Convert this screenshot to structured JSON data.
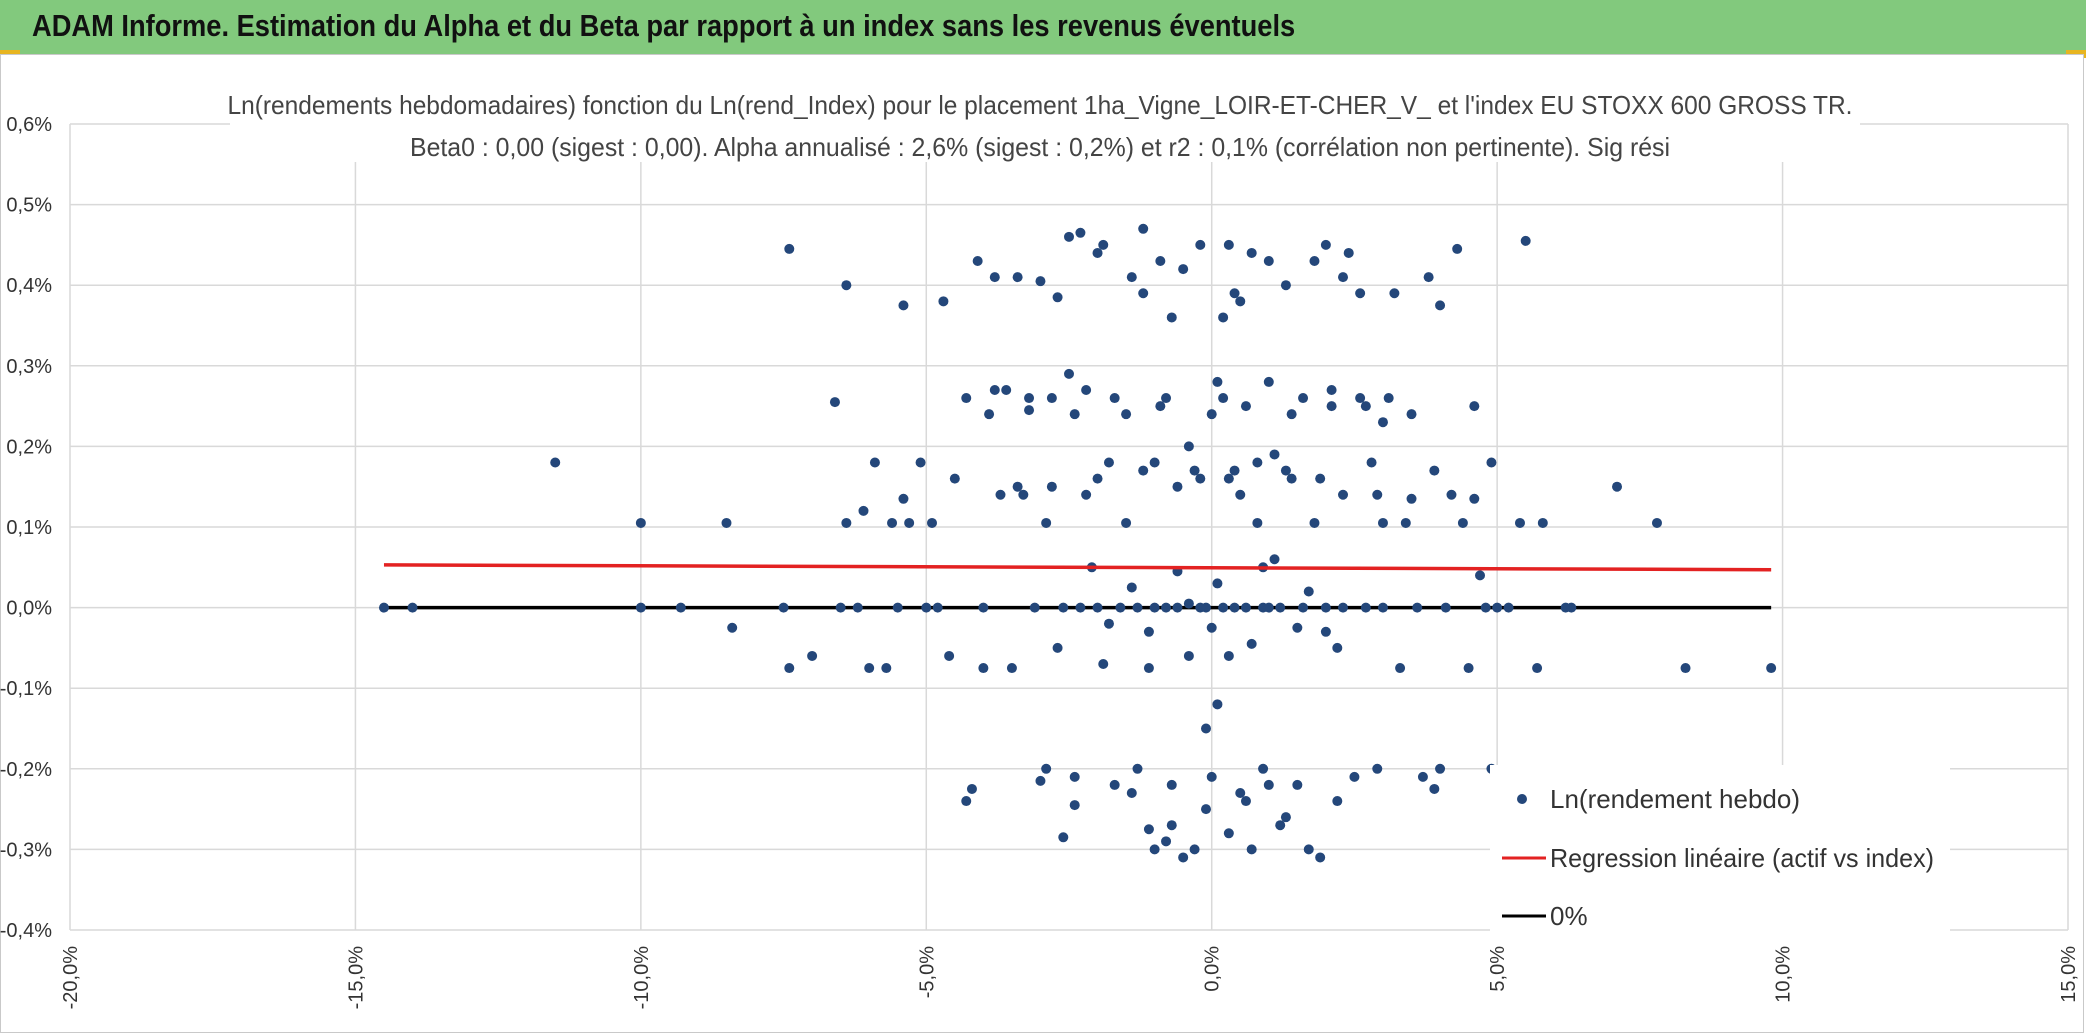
{
  "header": {
    "title": "ADAM Informe. Estimation du Alpha et du Beta par rapport à un index sans les revenus éventuels",
    "background": "#82c97d",
    "corner_color": "#e7b521"
  },
  "chart_data": {
    "type": "scatter",
    "title_line1": "Ln(rendements hebdomadaires) fonction du Ln(rend_Index) pour le placement 1ha_Vigne_LOIR-ET-CHER_V_ et l'index EU STOXX 600 GROSS TR.",
    "title_line2": "Beta0 : 0,00 (sigest : 0,00). Alpha annualisé : 2,6% (sigest : 0,2%) et r2 : 0,1% (corrélation non pertinente). Sig rési",
    "xlim": [
      -20,
      15
    ],
    "ylim": [
      -0.4,
      0.6
    ],
    "x_ticks": [
      -20,
      -15,
      -10,
      -5,
      0,
      5,
      10,
      15
    ],
    "x_tick_labels": [
      "-20,0%",
      "-15,0%",
      "-10,0%",
      "-5,0%",
      "0,0%",
      "5,0%",
      "10,0%",
      "15,0%"
    ],
    "y_ticks": [
      -0.4,
      -0.3,
      -0.2,
      -0.1,
      0.0,
      0.1,
      0.2,
      0.3,
      0.4,
      0.5,
      0.6
    ],
    "y_tick_labels": [
      "-0,4%",
      "-0,3%",
      "-0,2%",
      "-0,1%",
      "0,0%",
      "0,1%",
      "0,2%",
      "0,3%",
      "0,4%",
      "0,5%",
      "0,6%"
    ],
    "grid": true,
    "legend": [
      {
        "label": "Ln(rendement hebdo)",
        "marker": "dot",
        "color": "#24477a"
      },
      {
        "label": "Regression linéaire (actif vs index)",
        "marker": "line",
        "color": "#e32222"
      },
      {
        "label": "0%",
        "marker": "line",
        "color": "#000000"
      }
    ],
    "legend_placement": "bottom-right",
    "series": [
      {
        "name": "Ln(rendement hebdo)",
        "color": "#24477a",
        "points": [
          [
            -14.5,
            0.0
          ],
          [
            -14.0,
            0.0
          ],
          [
            -11.5,
            0.18
          ],
          [
            -10.0,
            0.105
          ],
          [
            -10.0,
            0.0
          ],
          [
            -9.3,
            0.0
          ],
          [
            -8.5,
            0.105
          ],
          [
            -8.4,
            -0.025
          ],
          [
            -7.5,
            0.0
          ],
          [
            -7.4,
            -0.075
          ],
          [
            -7.4,
            0.445
          ],
          [
            -7.0,
            -0.06
          ],
          [
            -6.6,
            0.255
          ],
          [
            -6.5,
            0.0
          ],
          [
            -6.4,
            0.105
          ],
          [
            -6.4,
            0.4
          ],
          [
            -6.2,
            0.0
          ],
          [
            -6.1,
            0.12
          ],
          [
            -6.0,
            -0.075
          ],
          [
            -5.9,
            0.18
          ],
          [
            -5.7,
            -0.075
          ],
          [
            -5.6,
            0.105
          ],
          [
            -5.5,
            0.0
          ],
          [
            -5.4,
            0.375
          ],
          [
            -5.4,
            0.135
          ],
          [
            -5.3,
            0.105
          ],
          [
            -5.1,
            0.18
          ],
          [
            -5.0,
            0.0
          ],
          [
            -4.9,
            0.105
          ],
          [
            -4.8,
            0.0
          ],
          [
            -4.7,
            0.38
          ],
          [
            -4.6,
            -0.06
          ],
          [
            -4.5,
            0.16
          ],
          [
            -4.3,
            0.26
          ],
          [
            -4.3,
            -0.24
          ],
          [
            -4.2,
            -0.225
          ],
          [
            -4.1,
            0.43
          ],
          [
            -4.0,
            0.0
          ],
          [
            -4.0,
            -0.075
          ],
          [
            -3.9,
            0.24
          ],
          [
            -3.8,
            0.41
          ],
          [
            -3.7,
            0.14
          ],
          [
            -3.6,
            0.27
          ],
          [
            -3.5,
            -0.075
          ],
          [
            -3.4,
            0.41
          ],
          [
            -3.3,
            0.14
          ],
          [
            -3.2,
            0.26
          ],
          [
            -3.1,
            0.0
          ],
          [
            -3.0,
            -0.215
          ],
          [
            -3.0,
            0.405
          ],
          [
            -2.9,
            0.105
          ],
          [
            -2.9,
            -0.2
          ],
          [
            -2.8,
            0.26
          ],
          [
            -2.7,
            -0.05
          ],
          [
            -2.7,
            0.385
          ],
          [
            -2.6,
            0.0
          ],
          [
            -2.6,
            -0.285
          ],
          [
            -2.5,
            0.29
          ],
          [
            -2.5,
            0.46
          ],
          [
            -2.4,
            -0.21
          ],
          [
            -2.4,
            -0.245
          ],
          [
            -2.3,
            0.0
          ],
          [
            -2.3,
            0.465
          ],
          [
            -2.2,
            0.27
          ],
          [
            -2.2,
            0.14
          ],
          [
            -2.1,
            0.05
          ],
          [
            -2.0,
            0.0
          ],
          [
            -2.0,
            0.44
          ],
          [
            -1.9,
            -0.07
          ],
          [
            -1.9,
            0.45
          ],
          [
            -1.8,
            0.18
          ],
          [
            -1.7,
            -0.22
          ],
          [
            -1.7,
            0.26
          ],
          [
            -1.6,
            0.0
          ],
          [
            -1.5,
            0.105
          ],
          [
            -1.4,
            -0.23
          ],
          [
            -1.4,
            0.41
          ],
          [
            -1.3,
            0.0
          ],
          [
            -1.3,
            -0.2
          ],
          [
            -1.2,
            0.39
          ],
          [
            -1.2,
            0.47
          ],
          [
            -1.1,
            -0.075
          ],
          [
            -1.1,
            -0.275
          ],
          [
            -1.0,
            0.18
          ],
          [
            -1.0,
            0.0
          ],
          [
            -0.9,
            0.43
          ],
          [
            -0.8,
            0.26
          ],
          [
            -0.8,
            -0.29
          ],
          [
            -0.7,
            0.36
          ],
          [
            -0.7,
            -0.22
          ],
          [
            -0.6,
            0.0
          ],
          [
            -0.6,
            0.045
          ],
          [
            -0.5,
            -0.31
          ],
          [
            -0.5,
            0.42
          ],
          [
            -0.4,
            0.2
          ],
          [
            -0.4,
            0.005
          ],
          [
            -0.3,
            -0.3
          ],
          [
            -0.2,
            0.45
          ],
          [
            -0.2,
            0.16
          ],
          [
            -0.1,
            0.0
          ],
          [
            -0.1,
            -0.15
          ],
          [
            0.0,
            0.24
          ],
          [
            0.0,
            -0.025
          ],
          [
            0.1,
            0.28
          ],
          [
            0.1,
            -0.12
          ],
          [
            0.2,
            0.36
          ],
          [
            0.2,
            0.0
          ],
          [
            0.3,
            0.45
          ],
          [
            0.3,
            -0.06
          ],
          [
            0.4,
            0.39
          ],
          [
            0.4,
            0.17
          ],
          [
            0.5,
            -0.23
          ],
          [
            0.5,
            0.38
          ],
          [
            0.6,
            0.0
          ],
          [
            0.6,
            0.25
          ],
          [
            0.7,
            -0.3
          ],
          [
            0.7,
            0.44
          ],
          [
            0.8,
            0.105
          ],
          [
            0.9,
            0.0
          ],
          [
            0.9,
            -0.2
          ],
          [
            1.0,
            0.43
          ],
          [
            1.0,
            0.28
          ],
          [
            1.1,
            0.06
          ],
          [
            1.2,
            -0.27
          ],
          [
            1.2,
            0.0
          ],
          [
            1.3,
            0.4
          ],
          [
            1.4,
            0.16
          ],
          [
            1.5,
            -0.22
          ],
          [
            1.6,
            0.26
          ],
          [
            1.6,
            0.0
          ],
          [
            1.7,
            -0.3
          ],
          [
            1.8,
            0.43
          ],
          [
            1.8,
            0.105
          ],
          [
            1.9,
            -0.31
          ],
          [
            2.0,
            0.45
          ],
          [
            2.0,
            0.0
          ],
          [
            2.1,
            0.25
          ],
          [
            2.2,
            -0.05
          ],
          [
            2.3,
            0.41
          ],
          [
            2.3,
            0.0
          ],
          [
            2.4,
            0.44
          ],
          [
            2.5,
            -0.21
          ],
          [
            2.6,
            0.26
          ],
          [
            2.6,
            0.39
          ],
          [
            2.7,
            0.0
          ],
          [
            2.8,
            0.18
          ],
          [
            2.9,
            -0.2
          ],
          [
            3.0,
            0.105
          ],
          [
            3.0,
            0.0
          ],
          [
            3.1,
            0.26
          ],
          [
            3.2,
            0.39
          ],
          [
            3.3,
            -0.075
          ],
          [
            3.4,
            0.105
          ],
          [
            3.5,
            0.24
          ],
          [
            3.6,
            0.0
          ],
          [
            3.7,
            -0.21
          ],
          [
            3.8,
            0.41
          ],
          [
            3.9,
            -0.225
          ],
          [
            3.9,
            0.17
          ],
          [
            4.0,
            0.375
          ],
          [
            4.0,
            -0.2
          ],
          [
            4.1,
            0.0
          ],
          [
            4.2,
            0.14
          ],
          [
            4.3,
            0.445
          ],
          [
            4.4,
            0.105
          ],
          [
            4.5,
            -0.075
          ],
          [
            4.6,
            0.25
          ],
          [
            4.6,
            0.135
          ],
          [
            4.7,
            0.04
          ],
          [
            4.8,
            0.0
          ],
          [
            4.9,
            0.18
          ],
          [
            4.9,
            -0.2
          ],
          [
            5.0,
            0.0
          ],
          [
            5.2,
            0.0
          ],
          [
            5.4,
            0.105
          ],
          [
            5.5,
            0.455
          ],
          [
            5.7,
            -0.075
          ],
          [
            5.8,
            0.105
          ],
          [
            6.2,
            0.0
          ],
          [
            6.3,
            0.0
          ],
          [
            7.1,
            0.15
          ],
          [
            7.8,
            0.105
          ],
          [
            8.3,
            -0.075
          ],
          [
            9.8,
            -0.075
          ],
          [
            -0.3,
            0.17
          ],
          [
            0.3,
            0.16
          ],
          [
            0.8,
            0.18
          ],
          [
            1.3,
            0.17
          ],
          [
            1.9,
            0.16
          ],
          [
            -0.6,
            0.15
          ],
          [
            0.5,
            0.14
          ],
          [
            1.1,
            0.19
          ],
          [
            -1.2,
            0.17
          ],
          [
            2.3,
            0.14
          ],
          [
            -0.9,
            0.25
          ],
          [
            0.2,
            0.26
          ],
          [
            1.4,
            0.24
          ],
          [
            -1.5,
            0.24
          ],
          [
            2.1,
            0.27
          ],
          [
            -0.2,
            0.0
          ],
          [
            0.4,
            0.0
          ],
          [
            1.0,
            0.0
          ],
          [
            -0.8,
            0.0
          ],
          [
            1.5,
            -0.025
          ],
          [
            -1.1,
            -0.03
          ],
          [
            0.7,
            -0.045
          ],
          [
            -0.4,
            -0.06
          ],
          [
            2.0,
            -0.03
          ],
          [
            -1.8,
            -0.02
          ],
          [
            0.1,
            0.03
          ],
          [
            1.7,
            0.02
          ],
          [
            -1.4,
            0.025
          ],
          [
            0.9,
            0.05
          ],
          [
            -0.1,
            -0.25
          ],
          [
            0.6,
            -0.24
          ],
          [
            1.3,
            -0.26
          ],
          [
            -0.7,
            -0.27
          ],
          [
            0.3,
            -0.28
          ],
          [
            1.0,
            -0.22
          ],
          [
            -1.0,
            -0.3
          ],
          [
            0.0,
            -0.21
          ],
          [
            2.2,
            -0.24
          ],
          [
            -2.4,
            0.24
          ],
          [
            -3.2,
            0.245
          ],
          [
            -3.8,
            0.27
          ],
          [
            2.7,
            0.25
          ],
          [
            3.0,
            0.23
          ],
          [
            -2.0,
            0.16
          ],
          [
            -2.8,
            0.15
          ],
          [
            2.9,
            0.14
          ],
          [
            3.5,
            0.135
          ],
          [
            -3.4,
            0.15
          ]
        ]
      },
      {
        "name": "Regression linéaire (actif vs index)",
        "color": "#e32222",
        "x": [
          -14.5,
          9.8
        ],
        "y": [
          0.053,
          0.047
        ]
      },
      {
        "name": "0%",
        "color": "#000000",
        "x": [
          -14.5,
          9.8
        ],
        "y": [
          0.0,
          0.0
        ]
      }
    ]
  }
}
